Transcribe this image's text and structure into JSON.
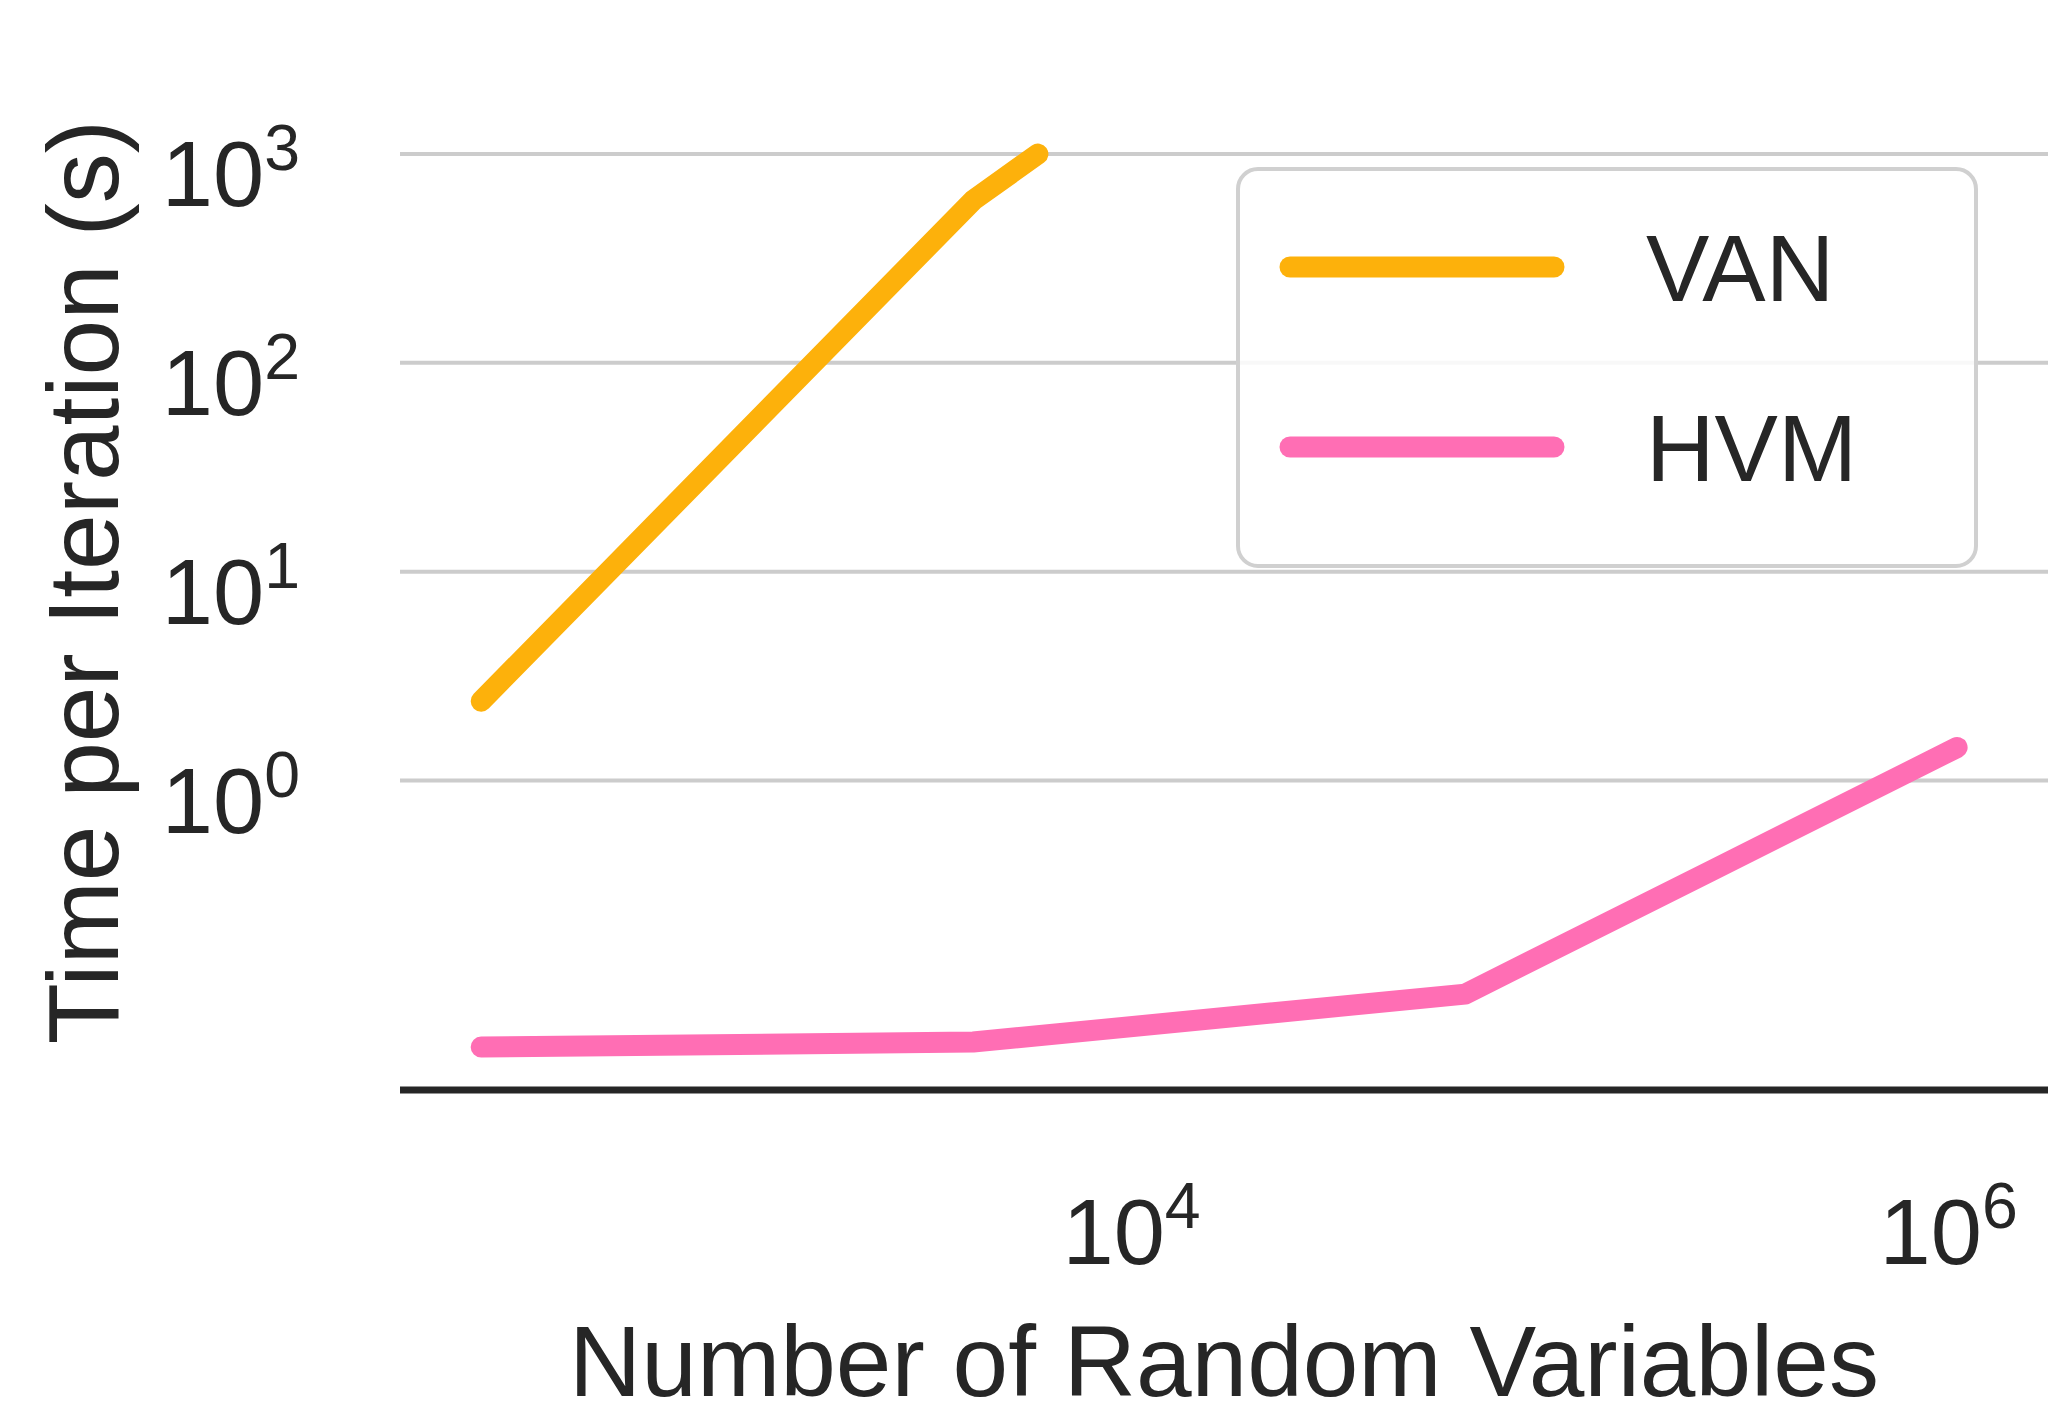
{
  "chart_data": {
    "type": "line",
    "xlabel": "Number of Random Variables",
    "ylabel": "Time per Iteration (s)",
    "log": "xy",
    "xlim": [
      162,
      1750000
    ],
    "ylim": [
      0.033,
      1000
    ],
    "xticks": [
      {
        "value": 10000,
        "label": "10$^{4}$"
      },
      {
        "value": 1000000,
        "label": "10$^{6}$"
      }
    ],
    "yticks": [
      {
        "value": 1,
        "label": "10$^{0}$"
      },
      {
        "value": 10,
        "label": "10$^{1}$"
      },
      {
        "value": 100,
        "label": "10$^{2}$"
      },
      {
        "value": 1000,
        "label": "10$^{3}$"
      }
    ],
    "grid": "y",
    "legend": "top right",
    "line_style": "solid",
    "marker": "none",
    "series": [
      {
        "name": "VAN",
        "color": "#fdb10b",
        "x": [
          256,
          4096,
          5900
        ],
        "values": [
          2.4,
          600,
          1000
        ]
      },
      {
        "name": "HVM",
        "color": "#ff6eb4",
        "x": [
          256,
          4096,
          65536,
          262144,
          1048576
        ],
        "values": [
          0.053,
          0.056,
          0.095,
          0.37,
          1.44
        ]
      }
    ]
  }
}
